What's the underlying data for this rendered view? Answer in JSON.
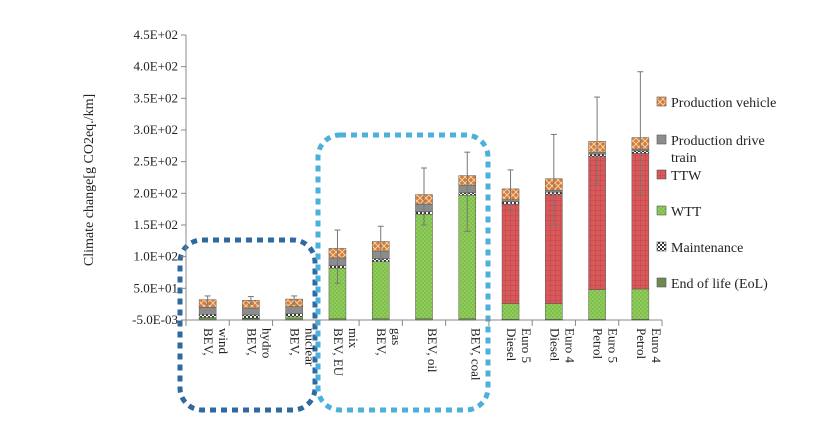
{
  "chart_data": {
    "type": "bar",
    "stacked": true,
    "ylabel": "Climate change[g CO2eq./km]",
    "ylim": [
      0,
      450
    ],
    "yticks": [
      "-5.0E-03",
      "5.0E+01",
      "1.0E+02",
      "1.5E+02",
      "2.0E+02",
      "2.5E+02",
      "3.0E+02",
      "3.5E+02",
      "4.0E+02",
      "4.5E+02"
    ],
    "ytick_values": [
      0,
      50,
      100,
      150,
      200,
      250,
      300,
      350,
      400,
      450
    ],
    "categories": [
      [
        "BEV,",
        "wind"
      ],
      [
        "BEV,",
        "hydro"
      ],
      [
        "BEV,",
        "nuclear"
      ],
      [
        "BEV, EU",
        "mix"
      ],
      [
        "BEV,",
        "gas"
      ],
      [
        "BEV, oil"
      ],
      [
        "BEV, coal"
      ],
      [
        "Diesel",
        "Euro 5"
      ],
      [
        "Diesel",
        "Euro 4"
      ],
      [
        "Petrol",
        "Euro 5"
      ],
      [
        "Petrol",
        "Euro 4"
      ]
    ],
    "series": [
      {
        "name": "End of life (EoL)",
        "color": "#6e8a52",
        "pattern": "solid",
        "values": [
          2,
          2,
          2,
          2,
          2,
          2,
          2,
          1,
          1,
          1,
          1
        ]
      },
      {
        "name": "WTT",
        "color": "#8fcc5a",
        "pattern": "dots",
        "values": [
          2,
          1,
          3,
          80,
          90,
          165,
          195,
          25,
          25,
          47,
          48
        ]
      },
      {
        "name": "TTW",
        "color": "#d9585a",
        "pattern": "grid",
        "values": [
          0,
          0,
          0,
          0,
          0,
          0,
          0,
          157,
          172,
          210,
          214
        ]
      },
      {
        "name": "Maintenance",
        "color": "#4a4a4a",
        "pattern": "check",
        "values": [
          5,
          5,
          5,
          4,
          5,
          4,
          4,
          4,
          4,
          4,
          4
        ]
      },
      {
        "name": "Production drive train",
        "color": "#8c8c8c",
        "pattern": "solid",
        "values": [
          11,
          11,
          11,
          12,
          12,
          12,
          12,
          3,
          3,
          3,
          3
        ]
      },
      {
        "name": "Production vehicle",
        "color": "#d87a36",
        "pattern": "cross",
        "values": [
          12,
          12,
          12,
          15,
          15,
          15,
          15,
          17,
          18,
          17,
          18
        ]
      }
    ],
    "totals": [
      32,
      31,
      33,
      113,
      124,
      198,
      228,
      207,
      223,
      282,
      288
    ],
    "error_bars": [
      [
        25,
        38
      ],
      [
        25,
        37
      ],
      [
        25,
        38
      ],
      [
        58,
        142
      ],
      [
        95,
        148
      ],
      [
        150,
        240
      ],
      [
        140,
        265
      ],
      [
        175,
        237
      ],
      [
        150,
        293
      ],
      [
        215,
        352
      ],
      [
        200,
        392
      ]
    ],
    "legend": [
      "Production vehicle",
      "Production drive train",
      "TTW",
      "WTT",
      "Maintenance",
      "End of life (EoL)"
    ],
    "legend_position": "right",
    "grid": false
  }
}
